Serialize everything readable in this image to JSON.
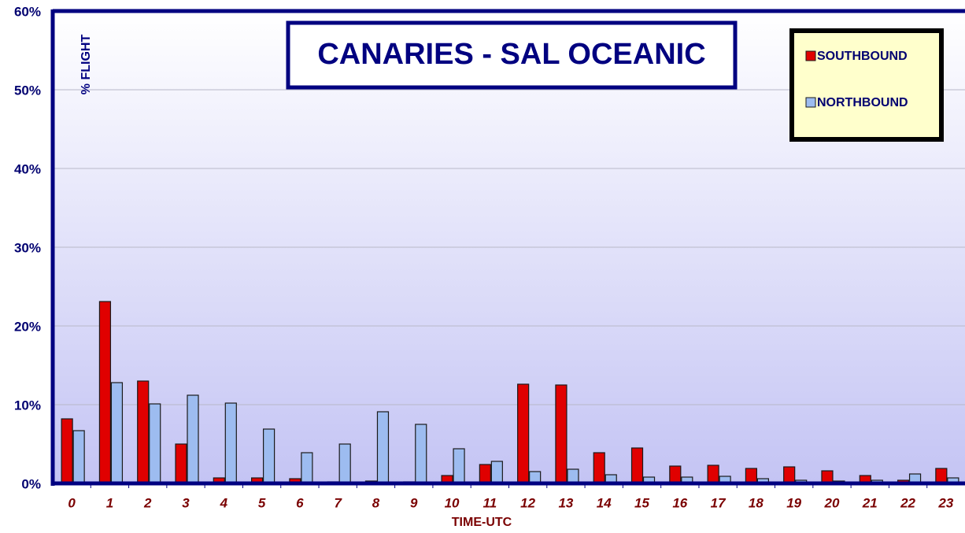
{
  "chart_data": {
    "type": "bar",
    "title": "CANARIES - SAL OCEANIC",
    "y_label": "% FLIGHT",
    "x_label": "TIME-UTC",
    "categories": [
      "0",
      "1",
      "2",
      "3",
      "4",
      "5",
      "6",
      "7",
      "8",
      "9",
      "10",
      "11",
      "12",
      "13",
      "14",
      "15",
      "16",
      "17",
      "18",
      "19",
      "20",
      "21",
      "22",
      "23"
    ],
    "series": [
      {
        "name": "SOUTHBOUND",
        "color": "#e00000",
        "values": [
          8.2,
          23.1,
          13.0,
          5.0,
          0.7,
          0.7,
          0.6,
          0.2,
          0.3,
          0.2,
          1.0,
          2.4,
          12.6,
          12.5,
          3.9,
          4.5,
          2.2,
          2.3,
          1.9,
          2.1,
          1.6,
          1.0,
          0.4,
          1.9
        ]
      },
      {
        "name": "NORTHBOUND",
        "color": "#9dbcf0",
        "values": [
          6.7,
          12.8,
          10.1,
          11.2,
          10.2,
          6.9,
          3.9,
          5.0,
          9.1,
          7.5,
          4.4,
          2.8,
          1.5,
          1.8,
          1.1,
          0.8,
          0.8,
          0.9,
          0.6,
          0.4,
          0.3,
          0.4,
          1.2,
          0.7
        ]
      }
    ],
    "ylim": [
      0,
      60
    ],
    "yticks": [
      {
        "value": 0,
        "label": "0%"
      },
      {
        "value": 10,
        "label": "10%"
      },
      {
        "value": 20,
        "label": "20%"
      },
      {
        "value": 30,
        "label": "30%"
      },
      {
        "value": 40,
        "label": "40%"
      },
      {
        "value": 50,
        "label": "50%"
      },
      {
        "value": 60,
        "label": "60%"
      }
    ],
    "grid": true,
    "legend": "top-right"
  }
}
